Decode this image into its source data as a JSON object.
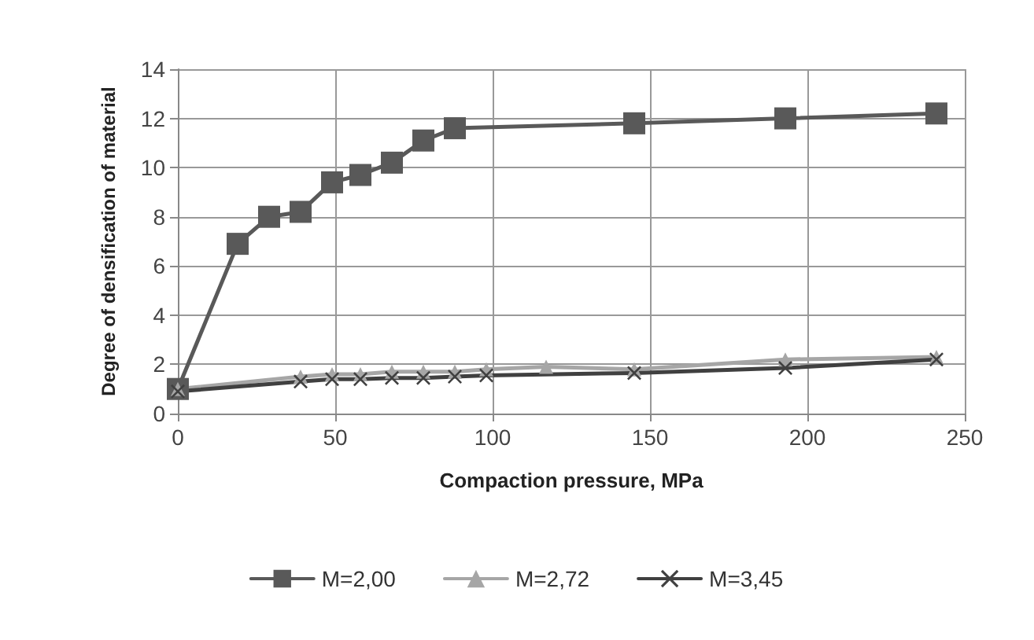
{
  "chart_data": {
    "type": "line",
    "xlabel": "Compaction pressure, MPa",
    "ylabel": "Degree of densification of material",
    "xlim": [
      0,
      250
    ],
    "xticks": [
      0,
      50,
      100,
      150,
      200,
      250
    ],
    "ylim": [
      0,
      14
    ],
    "yticks": [
      0,
      2,
      4,
      6,
      8,
      10,
      12,
      14
    ],
    "grid": true,
    "legend": "bottom",
    "series": [
      {
        "name": "M=2,00",
        "color": "#595959",
        "marker": "square",
        "x": [
          0,
          19,
          29,
          39,
          49,
          58,
          68,
          78,
          88,
          145,
          193,
          241
        ],
        "values": [
          1.0,
          6.9,
          8.0,
          8.2,
          9.4,
          9.7,
          10.2,
          11.1,
          11.6,
          11.8,
          12.0,
          12.2
        ]
      },
      {
        "name": "M=2,72",
        "color": "#a6a6a6",
        "marker": "triangle",
        "x": [
          0,
          39,
          49,
          58,
          68,
          78,
          88,
          98,
          117,
          145,
          193,
          241
        ],
        "values": [
          1.0,
          1.5,
          1.6,
          1.6,
          1.7,
          1.7,
          1.7,
          1.8,
          1.9,
          1.8,
          2.2,
          2.3
        ]
      },
      {
        "name": "M=3,45",
        "color": "#404040",
        "marker": "cross",
        "x": [
          0,
          39,
          49,
          58,
          68,
          78,
          88,
          98,
          145,
          193,
          241
        ],
        "values": [
          0.9,
          1.3,
          1.4,
          1.4,
          1.45,
          1.45,
          1.5,
          1.55,
          1.65,
          1.85,
          2.2
        ]
      }
    ]
  }
}
